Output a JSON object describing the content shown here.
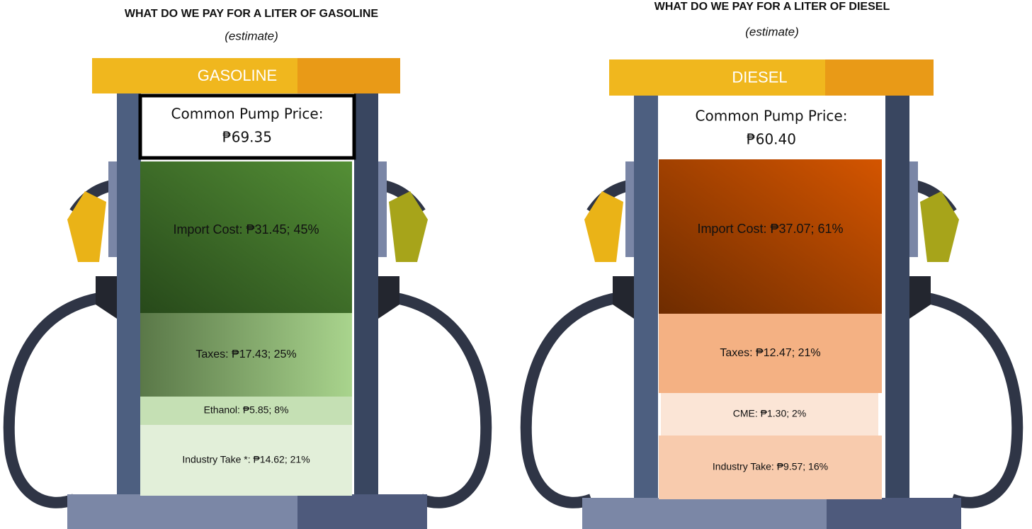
{
  "panels": [
    {
      "title": "WHAT DO WE PAY FOR A LITER OF GASOLINE",
      "subtitle": "(estimate)",
      "pump_label": "GASOLINE",
      "price_label": "Common Pump Price:",
      "price": "₱69.35",
      "segments": [
        "Import Cost: ₱31.45; 45%",
        "Taxes: ₱17.43; 25%",
        "Ethanol: ₱5.85; 8%",
        "Industry Take *: ₱14.62; 21%"
      ]
    },
    {
      "title": "WHAT DO WE PAY FOR A LITER OF DIESEL",
      "subtitle": "(estimate)",
      "pump_label": "DIESEL",
      "price_label": "Common Pump Price:",
      "price": "₱60.40",
      "segments": [
        "Import Cost: ₱37.07; 61%",
        "Taxes: ₱12.47; 21%",
        "CME: ₱1.30; 2%",
        "Industry Take: ₱9.57; 16%"
      ]
    }
  ]
}
